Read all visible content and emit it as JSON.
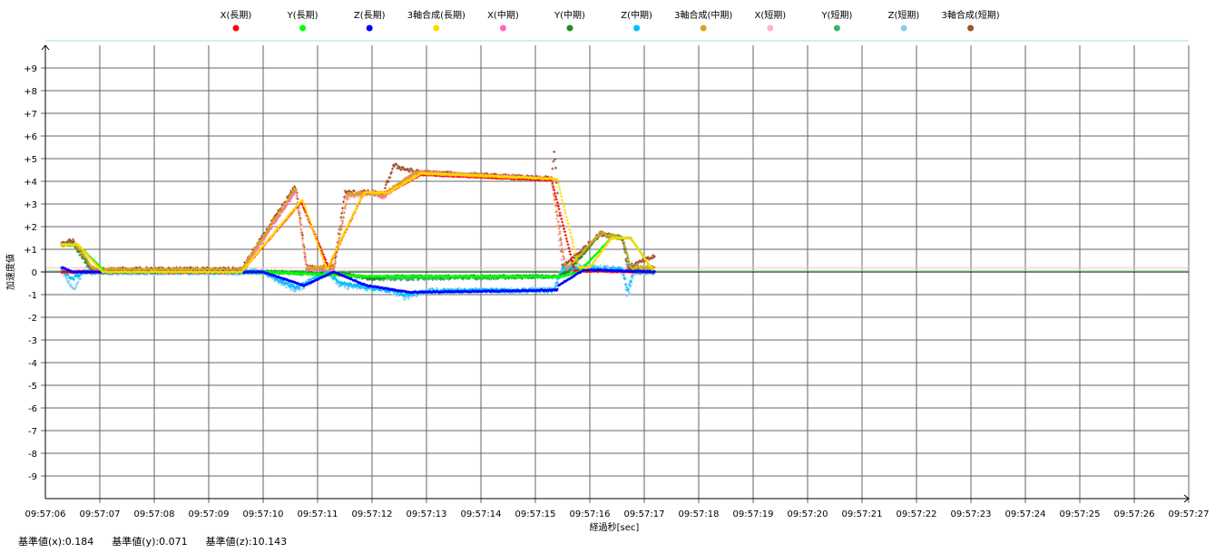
{
  "chart_data": {
    "type": "scatter",
    "title": "",
    "xlabel": "経過秒[sec]",
    "ylabel": "加速度値",
    "xlim": [
      "09:57:06",
      "09:57:27"
    ],
    "ylim": [
      -10,
      10
    ],
    "x_ticks": [
      "09:57:06",
      "09:57:07",
      "09:57:08",
      "09:57:09",
      "09:57:10",
      "09:57:11",
      "09:57:12",
      "09:57:13",
      "09:57:14",
      "09:57:15",
      "09:57:16",
      "09:57:17",
      "09:57:18",
      "09:57:19",
      "09:57:20",
      "09:57:21",
      "09:57:22",
      "09:57:23",
      "09:57:24",
      "09:57:25",
      "09:57:26",
      "09:57:27"
    ],
    "y_ticks": [
      "+9",
      "+8",
      "+7",
      "+6",
      "+5",
      "+4",
      "+3",
      "+2",
      "+1",
      "0",
      "-1",
      "-2",
      "-3",
      "-4",
      "-5",
      "-6",
      "-7",
      "-8",
      "-9"
    ],
    "grid": true,
    "legend_placement": "top",
    "reference_lines": [
      {
        "y": 0.184,
        "color": "#ffc0cb"
      },
      {
        "y": 0.071,
        "color": "#90ee90"
      }
    ],
    "series": [
      {
        "name": "X(長期)",
        "color": "#ff0000",
        "points": [
          [
            "09:57:06.3",
            0
          ],
          [
            "09:57:09.6",
            0
          ],
          [
            "09:57:10.7",
            3.1
          ],
          [
            "09:57:11.2",
            0.2
          ],
          [
            "09:57:11.85",
            3.5
          ],
          [
            "09:57:12.3",
            3.5
          ],
          [
            "09:57:12.9",
            4.3
          ],
          [
            "09:57:15.3",
            4.05
          ],
          [
            "09:57:15.72",
            0.05
          ],
          [
            "09:57:17.2",
            0
          ]
        ]
      },
      {
        "name": "Y(長期)",
        "color": "#00ff00",
        "points": [
          [
            "09:57:06.3",
            1.2
          ],
          [
            "09:57:06.6",
            1.2
          ],
          [
            "09:57:07.1",
            0
          ],
          [
            "09:57:10.0",
            0
          ],
          [
            "09:57:11.0",
            -0.1
          ],
          [
            "09:57:12.0",
            -0.2
          ],
          [
            "09:57:15.5",
            -0.2
          ],
          [
            "09:57:15.8",
            0
          ],
          [
            "09:57:16.4",
            1.5
          ],
          [
            "09:57:16.75",
            1.5
          ],
          [
            "09:57:17.15",
            0.1
          ]
        ]
      },
      {
        "name": "Z(長期)",
        "color": "#0000ff",
        "points": [
          [
            "09:57:06.3",
            0.2
          ],
          [
            "09:57:06.5",
            0
          ],
          [
            "09:57:10.0",
            0
          ],
          [
            "09:57:10.75",
            -0.6
          ],
          [
            "09:57:11.3",
            0
          ],
          [
            "09:57:11.9",
            -0.6
          ],
          [
            "09:57:12.7",
            -0.9
          ],
          [
            "09:57:15.4",
            -0.8
          ],
          [
            "09:57:15.42",
            -0.6
          ],
          [
            "09:57:15.9",
            0.1
          ],
          [
            "09:57:17.2",
            0
          ]
        ]
      },
      {
        "name": "3軸合成(長期)",
        "color": "#ffd700",
        "points": [
          [
            "09:57:06.3",
            1.2
          ],
          [
            "09:57:06.6",
            1.2
          ],
          [
            "09:57:07.05",
            0
          ],
          [
            "09:57:09.6",
            0
          ],
          [
            "09:57:10.72",
            3.2
          ],
          [
            "09:57:11.17",
            0.1
          ],
          [
            "09:57:11.85",
            3.5
          ],
          [
            "09:57:12.3",
            3.5
          ],
          [
            "09:57:12.9",
            4.35
          ],
          [
            "09:57:15.4",
            4.1
          ],
          [
            "09:57:15.8",
            0.2
          ],
          [
            "09:57:16.0",
            0.2
          ],
          [
            "09:57:16.4",
            1.5
          ],
          [
            "09:57:16.75",
            1.5
          ],
          [
            "09:57:17.15",
            0.1
          ]
        ]
      },
      {
        "name": "X(中期)",
        "color": "#ff69b4",
        "points": [
          [
            "09:57:06.3",
            0
          ],
          [
            "09:57:09.6",
            0
          ],
          [
            "09:57:10.6",
            3.6
          ],
          [
            "09:57:10.8",
            0.1
          ],
          [
            "09:57:11.3",
            0.1
          ],
          [
            "09:57:11.55",
            3.4
          ],
          [
            "09:57:12.0",
            3.5
          ],
          [
            "09:57:12.2",
            3.3
          ],
          [
            "09:57:12.8",
            4.4
          ],
          [
            "09:57:15.3",
            4.1
          ],
          [
            "09:57:15.55",
            0.1
          ],
          [
            "09:57:17.2",
            0
          ]
        ]
      },
      {
        "name": "Y(中期)",
        "color": "#228b22",
        "points": [
          [
            "09:57:06.3",
            1.2
          ],
          [
            "09:57:06.55",
            1.2
          ],
          [
            "09:57:06.9",
            0
          ],
          [
            "09:57:10.0",
            0
          ],
          [
            "09:57:11.5",
            -0.1
          ],
          [
            "09:57:12.0",
            -0.3
          ],
          [
            "09:57:12.3",
            -0.2
          ],
          [
            "09:57:15.4",
            -0.2
          ],
          [
            "09:57:15.6",
            0
          ],
          [
            "09:57:16.2",
            1.7
          ],
          [
            "09:57:16.6",
            1.5
          ],
          [
            "09:57:16.75",
            0.1
          ],
          [
            "09:57:17.2",
            0
          ]
        ]
      },
      {
        "name": "Z(中期)",
        "color": "#00bfff",
        "points": [
          [
            "09:57:06.3",
            0.1
          ],
          [
            "09:57:06.5",
            -0.3
          ],
          [
            "09:57:06.7",
            0
          ],
          [
            "09:57:10.0",
            0
          ],
          [
            "09:57:10.6",
            -0.7
          ],
          [
            "09:57:11.2",
            0
          ],
          [
            "09:57:11.4",
            -0.5
          ],
          [
            "09:57:12.3",
            -0.8
          ],
          [
            "09:57:12.6",
            -1.0
          ],
          [
            "09:57:13.0",
            -0.85
          ],
          [
            "09:57:15.35",
            -0.8
          ],
          [
            "09:57:15.5",
            0.2
          ],
          [
            "09:57:16.6",
            0.1
          ],
          [
            "09:57:16.7",
            -0.8
          ],
          [
            "09:57:16.8",
            0
          ],
          [
            "09:57:17.2",
            0
          ]
        ]
      },
      {
        "name": "3軸合成(中期)",
        "color": "#daa520",
        "points": [
          [
            "09:57:06.3",
            1.2
          ],
          [
            "09:57:06.55",
            1.2
          ],
          [
            "09:57:06.9",
            0.1
          ],
          [
            "09:57:09.6",
            0.1
          ],
          [
            "09:57:10.6",
            3.7
          ],
          [
            "09:57:10.8",
            0.2
          ],
          [
            "09:57:11.3",
            0.2
          ],
          [
            "09:57:11.55",
            3.4
          ],
          [
            "09:57:12.0",
            3.5
          ],
          [
            "09:57:12.2",
            3.4
          ],
          [
            "09:57:12.8",
            4.4
          ],
          [
            "09:57:15.3",
            4.1
          ],
          [
            "09:57:15.55",
            0.2
          ],
          [
            "09:57:15.6",
            0.2
          ],
          [
            "09:57:16.2",
            1.7
          ],
          [
            "09:57:16.6",
            1.5
          ],
          [
            "09:57:16.75",
            0.2
          ],
          [
            "09:57:17.2",
            0.2
          ]
        ]
      },
      {
        "name": "X(短期)",
        "color": "#ffb6c1",
        "points": [
          [
            "09:57:06.3",
            0
          ],
          [
            "09:57:09.6",
            0
          ],
          [
            "09:57:10.6",
            3.6
          ],
          [
            "09:57:10.8",
            0.1
          ],
          [
            "09:57:11.3",
            0.1
          ],
          [
            "09:57:11.5",
            3.3
          ],
          [
            "09:57:12.0",
            3.5
          ],
          [
            "09:57:12.2",
            3.3
          ],
          [
            "09:57:12.8",
            4.4
          ],
          [
            "09:57:15.3",
            4.1
          ],
          [
            "09:57:15.5",
            0.1
          ],
          [
            "09:57:17.2",
            0
          ]
        ]
      },
      {
        "name": "Y(短期)",
        "color": "#3cb371",
        "points": [
          [
            "09:57:06.3",
            1.2
          ],
          [
            "09:57:06.5",
            1.3
          ],
          [
            "09:57:06.85",
            0
          ],
          [
            "09:57:10.0",
            0
          ],
          [
            "09:57:11.5",
            -0.1
          ],
          [
            "09:57:12.0",
            -0.3
          ],
          [
            "09:57:15.4",
            -0.2
          ],
          [
            "09:57:15.55",
            0
          ],
          [
            "09:57:16.2",
            1.7
          ],
          [
            "09:57:16.6",
            1.5
          ],
          [
            "09:57:16.7",
            0.1
          ],
          [
            "09:57:17.2",
            0
          ]
        ]
      },
      {
        "name": "Z(短期)",
        "color": "#87ceeb",
        "points": [
          [
            "09:57:06.3",
            0.1
          ],
          [
            "09:57:06.5",
            -0.8
          ],
          [
            "09:57:06.7",
            0
          ],
          [
            "09:57:10.0",
            0
          ],
          [
            "09:57:10.6",
            -0.8
          ],
          [
            "09:57:11.2",
            0
          ],
          [
            "09:57:11.4",
            -0.6
          ],
          [
            "09:57:12.3",
            -0.8
          ],
          [
            "09:57:12.6",
            -1.1
          ],
          [
            "09:57:13.0",
            -0.85
          ],
          [
            "09:57:15.35",
            -0.8
          ],
          [
            "09:57:15.5",
            0.3
          ],
          [
            "09:57:16.6",
            0.1
          ],
          [
            "09:57:16.7",
            -1.2
          ],
          [
            "09:57:16.8",
            0
          ],
          [
            "09:57:17.2",
            0
          ]
        ]
      },
      {
        "name": "3軸合成(短期)",
        "color": "#a0522d",
        "points": [
          [
            "09:57:06.3",
            1.2
          ],
          [
            "09:57:06.5",
            1.4
          ],
          [
            "09:57:06.85",
            0.1
          ],
          [
            "09:57:09.6",
            0.1
          ],
          [
            "09:57:10.6",
            3.8
          ],
          [
            "09:57:10.8",
            0.2
          ],
          [
            "09:57:11.3",
            0.2
          ],
          [
            "09:57:11.5",
            3.5
          ],
          [
            "09:57:12.0",
            3.5
          ],
          [
            "09:57:12.2",
            3.4
          ],
          [
            "09:57:12.4",
            4.7
          ],
          [
            "09:57:12.8",
            4.4
          ],
          [
            "09:57:15.3",
            4.1
          ],
          [
            "09:57:15.35",
            5.4
          ],
          [
            "09:57:15.5",
            0.2
          ],
          [
            "09:57:16.2",
            1.7
          ],
          [
            "09:57:16.6",
            1.5
          ],
          [
            "09:57:16.7",
            0.2
          ],
          [
            "09:57:17.2",
            0.7
          ]
        ]
      }
    ]
  },
  "footer": {
    "base_x": "基準値(x):0.184",
    "base_y": "基準値(y):0.071",
    "base_z": "基準値(z):10.143"
  }
}
